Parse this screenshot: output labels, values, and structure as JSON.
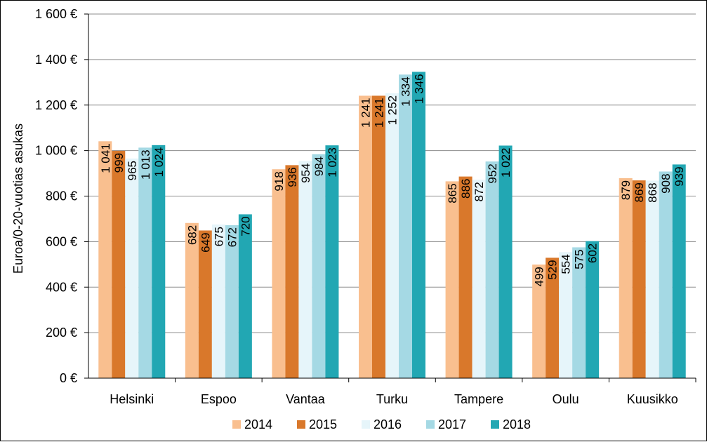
{
  "chart_data": {
    "type": "bar",
    "title": "",
    "xlabel": "",
    "ylabel": "Euroa/0-20-vuotias asukas",
    "ylim": [
      0,
      1600
    ],
    "yticks": [
      {
        "value": 0,
        "label": "0 €"
      },
      {
        "value": 200,
        "label": "200 €"
      },
      {
        "value": 400,
        "label": "400 €"
      },
      {
        "value": 600,
        "label": "600 €"
      },
      {
        "value": 800,
        "label": "800 €"
      },
      {
        "value": 1000,
        "label": "1 000 €"
      },
      {
        "value": 1200,
        "label": "1 200 €"
      },
      {
        "value": 1400,
        "label": "1 400 €"
      },
      {
        "value": 1600,
        "label": "1 600 €"
      }
    ],
    "grid": "horizontal",
    "legend_position": "bottom",
    "categories": [
      "Helsinki",
      "Espoo",
      "Vantaa",
      "Turku",
      "Tampere",
      "Oulu",
      "Kuusikko"
    ],
    "series": [
      {
        "name": "2014",
        "color": "#F9BF8F",
        "values": [
          1041,
          682,
          918,
          1241,
          865,
          499,
          879
        ],
        "labels": [
          "1 041",
          "682",
          "918",
          "1 241",
          "865",
          "499",
          "879"
        ]
      },
      {
        "name": "2015",
        "color": "#D9782B",
        "values": [
          999,
          649,
          936,
          1241,
          886,
          529,
          869
        ],
        "labels": [
          "999",
          "649",
          "936",
          "1 241",
          "886",
          "529",
          "869"
        ]
      },
      {
        "name": "2016",
        "color": "#E6F5FA",
        "values": [
          965,
          675,
          954,
          1252,
          872,
          554,
          868
        ],
        "labels": [
          "965",
          "675",
          "954",
          "1 252",
          "872",
          "554",
          "868"
        ]
      },
      {
        "name": "2017",
        "color": "#A5D9E4",
        "values": [
          1013,
          672,
          984,
          1334,
          952,
          575,
          908
        ],
        "labels": [
          "1 013",
          "672",
          "984",
          "1 334",
          "952",
          "575",
          "908"
        ]
      },
      {
        "name": "2018",
        "color": "#22A7B3",
        "values": [
          1024,
          720,
          1023,
          1346,
          1022,
          602,
          939
        ],
        "labels": [
          "1 024",
          "720",
          "1 023",
          "1 346",
          "1 022",
          "602",
          "939"
        ]
      }
    ]
  }
}
